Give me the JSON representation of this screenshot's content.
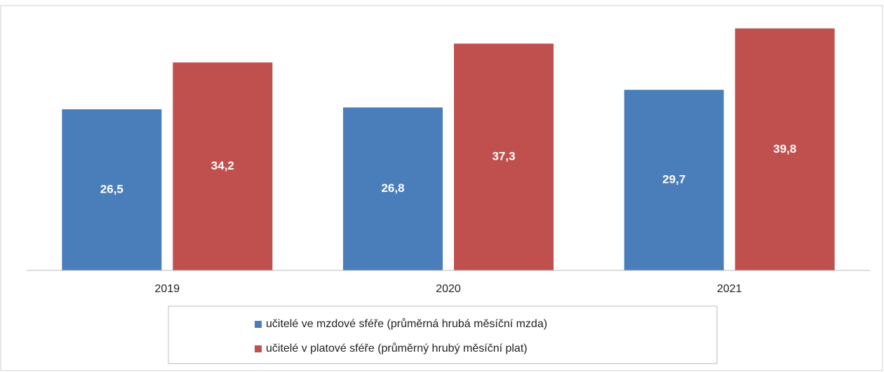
{
  "chart_data": {
    "type": "bar",
    "categories": [
      "2019",
      "2020",
      "2021"
    ],
    "series": [
      {
        "name": "učitelé ve mzdové sféře (průměrná hrubá měsíční mzda)",
        "color": "#4a7ebb",
        "values": [
          26.5,
          26.8,
          29.7
        ],
        "value_labels": [
          "26,5",
          "26,8",
          "29,7"
        ]
      },
      {
        "name": "učitelé v platové sféře (průměrný hrubý měsíční plat)",
        "color": "#c0504d",
        "values": [
          34.2,
          37.3,
          39.8
        ],
        "value_labels": [
          "34,2",
          "37,3",
          "39,8"
        ]
      }
    ],
    "legend": "bottom"
  }
}
